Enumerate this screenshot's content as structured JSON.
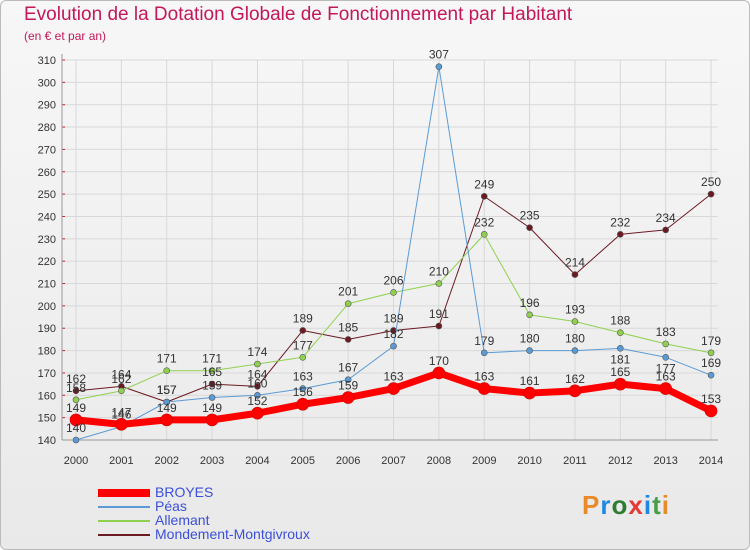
{
  "header": {
    "title": "Evolution de la Dotation Globale de Fonctionnement par Habitant",
    "subtitle": "(en € et par an)"
  },
  "logo": {
    "text": "Proxiti",
    "colors": [
      "#e98b2a",
      "#1e88e5",
      "#2e7d32",
      "#e53935",
      "#1e88e5",
      "#43a047",
      "#e98b2a"
    ]
  },
  "chart_data": {
    "type": "line",
    "title": "Evolution de la Dotation Globale de Fonctionnement par Habitant",
    "subtitle": "(en € et par an)",
    "xlabel": "",
    "ylabel": "",
    "x": [
      "2000",
      "2001",
      "2002",
      "2003",
      "2004",
      "2005",
      "2006",
      "2007",
      "2008",
      "2009",
      "2010",
      "2011",
      "2012",
      "2013",
      "2014"
    ],
    "ylim": [
      140,
      310
    ],
    "yticks": [
      "140",
      "150",
      "160",
      "170",
      "180",
      "190",
      "200",
      "210",
      "220",
      "230",
      "240",
      "250",
      "260",
      "270",
      "280",
      "290",
      "300",
      "310"
    ],
    "grid": true,
    "legend_position": "bottom-left",
    "series": [
      {
        "name": "Mondement-Montgivroux",
        "color": "#6b1a22",
        "width": 1,
        "values": [
          162,
          164,
          157,
          165,
          164,
          189,
          185,
          189,
          191,
          249,
          235,
          214,
          232,
          234,
          250
        ],
        "labels": [
          "162",
          "164",
          "157",
          "165",
          "164",
          "189",
          "185",
          "189",
          "191",
          "249",
          "235",
          "214",
          "232",
          "234",
          "250"
        ],
        "label_pos": [
          "above",
          "above",
          "above",
          "above",
          "above",
          "above",
          "above",
          "above",
          "above",
          "above",
          "above",
          "above",
          "above",
          "above",
          "above"
        ]
      },
      {
        "name": "Allemant",
        "color": "#8fd14f",
        "width": 1,
        "values": [
          158,
          162,
          171,
          171,
          174,
          177,
          201,
          206,
          210,
          232,
          196,
          193,
          188,
          183,
          179
        ],
        "labels": [
          "158",
          "162",
          "171",
          "171",
          "174",
          "177",
          "201",
          "206",
          "210",
          "232",
          "196",
          "193",
          "188",
          "183",
          "179"
        ],
        "label_pos": [
          "above",
          "above",
          "above",
          "above",
          "above",
          "above",
          "above",
          "above",
          "above",
          "above",
          "above",
          "above",
          "above",
          "above",
          "above"
        ]
      },
      {
        "name": "Péas",
        "color": "#5b9bd5",
        "width": 1,
        "values": [
          140,
          146,
          157,
          159,
          160,
          163,
          167,
          182,
          307,
          179,
          180,
          180,
          181,
          177,
          169
        ],
        "labels": [
          "140",
          "146",
          "157",
          "159",
          "160",
          "163",
          "167",
          "182",
          "307",
          "179",
          "180",
          "180",
          "181",
          "177",
          "169"
        ],
        "label_pos": [
          "above",
          "above",
          "above",
          "above",
          "above",
          "above",
          "above",
          "above",
          "above",
          "above",
          "above",
          "above",
          "below",
          "below",
          "above"
        ]
      },
      {
        "name": "BROYES",
        "color": "#ff0000",
        "width": 7,
        "values": [
          149,
          147,
          149,
          149,
          152,
          156,
          159,
          163,
          170,
          163,
          161,
          162,
          165,
          163,
          153
        ],
        "labels": [
          "149",
          "147",
          "149",
          "149",
          "152",
          "156",
          "159",
          "163",
          "170",
          "163",
          "161",
          "162",
          "165",
          "163",
          "153"
        ],
        "label_pos": [
          "above",
          "above",
          "above",
          "above",
          "above",
          "above",
          "above",
          "above",
          "above",
          "above",
          "above",
          "above",
          "above",
          "above",
          "above"
        ]
      }
    ],
    "legend": [
      "BROYES",
      "Péas",
      "Allemant",
      "Mondement-Montgivroux"
    ]
  }
}
